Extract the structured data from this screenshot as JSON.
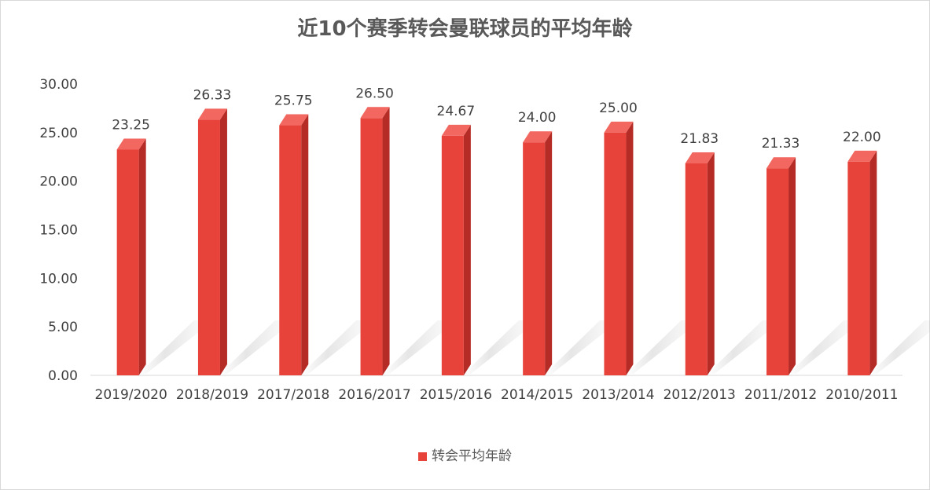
{
  "chart_data": {
    "type": "bar",
    "title": "近10个赛季转会曼联球员的平均年龄",
    "categories": [
      "2019/2020",
      "2018/2019",
      "2017/2018",
      "2016/2017",
      "2015/2016",
      "2014/2015",
      "2013/2014",
      "2012/2013",
      "2011/2012",
      "2010/2011"
    ],
    "series": [
      {
        "name": "转会平均年龄",
        "values": [
          23.25,
          26.33,
          25.75,
          26.5,
          24.67,
          24.0,
          25.0,
          21.83,
          21.33,
          22.0
        ],
        "data_labels": [
          "23.25",
          "26.33",
          "25.75",
          "26.50",
          "24.67",
          "24.00",
          "25.00",
          "21.83",
          "21.33",
          "22.00"
        ]
      }
    ],
    "y_ticks": [
      "0.00",
      "5.00",
      "10.00",
      "15.00",
      "20.00",
      "25.00",
      "30.00"
    ],
    "ylim": [
      0,
      30
    ],
    "xlabel": "",
    "ylabel": "",
    "grid": false,
    "legend_position": "bottom",
    "colors": {
      "bar": "#e8433b",
      "bar_top": "#f26760",
      "bar_side": "#b52b25"
    }
  }
}
